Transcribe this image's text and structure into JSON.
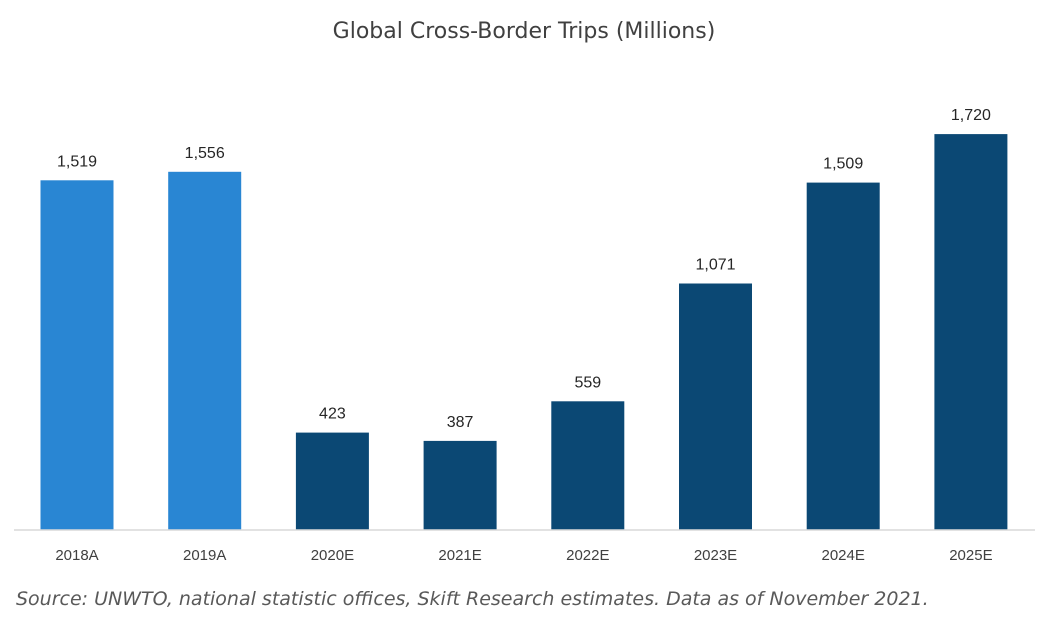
{
  "chart_data": {
    "type": "bar",
    "title": "Global Cross-Border Trips (Millions)",
    "xlabel": "",
    "ylabel": "",
    "ylim": [
      0,
      1800
    ],
    "categories": [
      "2018A",
      "2019A",
      "2020E",
      "2021E",
      "2022E",
      "2023E",
      "2024E",
      "2025E"
    ],
    "values": [
      1519,
      1556,
      423,
      387,
      559,
      1071,
      1509,
      1720
    ],
    "value_labels": [
      "1,519",
      "1,556",
      "423",
      "387",
      "559",
      "1,071",
      "1,509",
      "1,720"
    ],
    "grid": false,
    "legend": "none"
  },
  "colors": {
    "actual": "#2986d3",
    "estimate": "#0b4874",
    "axis": "#d9d9d9"
  },
  "source": "Source: UNWTO, national statistic offices, Skift Research estimates. Data as of November 2021."
}
